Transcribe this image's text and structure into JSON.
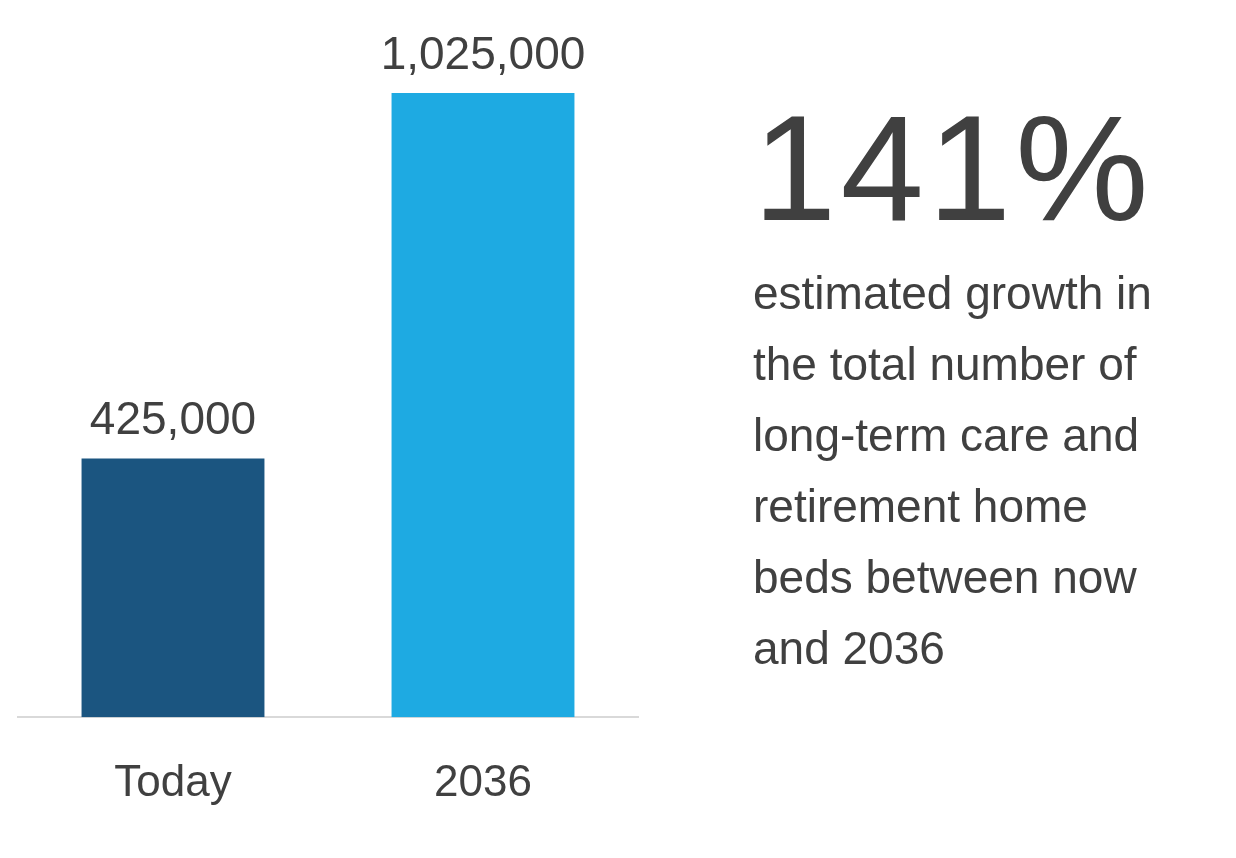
{
  "chart_data": {
    "type": "bar",
    "categories": [
      "Today",
      "2036"
    ],
    "values": [
      425000,
      1025000
    ],
    "colors": [
      "#1b5580",
      "#1eaae2"
    ],
    "value_labels": [
      "425,000",
      "1,025,000"
    ],
    "grid": false,
    "legend": false,
    "tick_labels": "x",
    "annotations": [
      "141%",
      "estimated growth in the total number of long-term care and retirement home beds between now and 2036"
    ]
  }
}
